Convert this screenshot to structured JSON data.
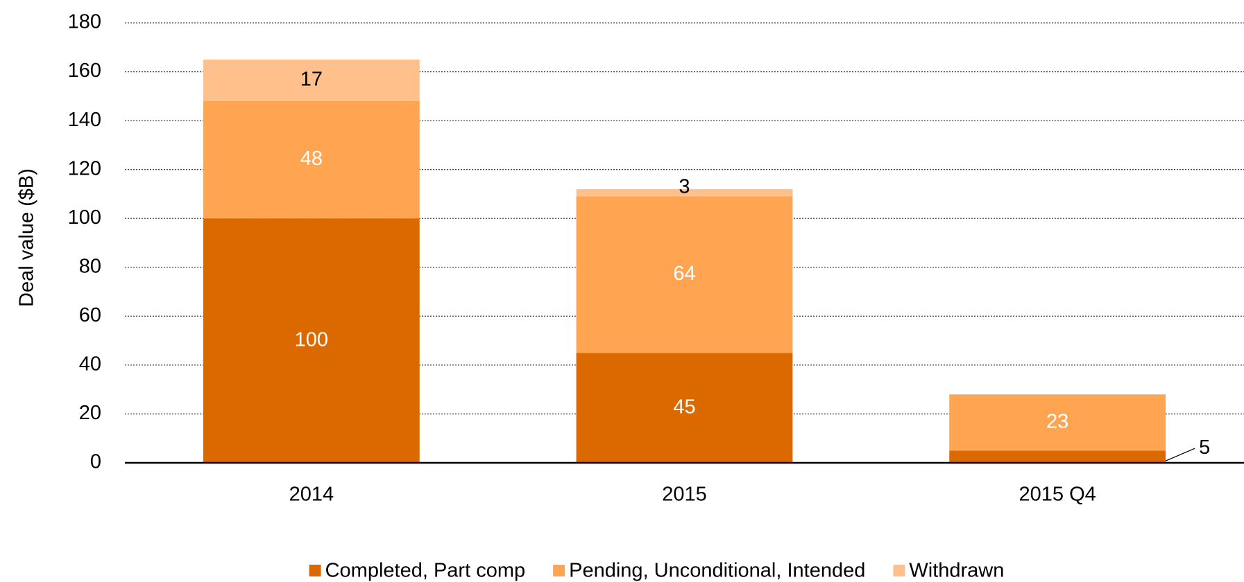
{
  "chart_data": {
    "type": "bar",
    "stacked": true,
    "y_label": "Deal value ($B)",
    "categories": [
      "2014",
      "2015",
      "2015 Q4"
    ],
    "series": [
      {
        "name": "Completed, Part comp",
        "color": "#dc6900",
        "label_color": "#ffffff",
        "values": [
          100,
          45,
          5
        ]
      },
      {
        "name": "Pending, Unconditional, Intended",
        "color": "#ffa552",
        "label_color": "#ffffff",
        "values": [
          48,
          64,
          23
        ]
      },
      {
        "name": "Withdrawn",
        "color": "#ffc08c",
        "label_color": "#000000",
        "values": [
          17,
          3,
          null
        ]
      }
    ],
    "ylim": [
      0,
      180
    ],
    "yticks": [
      0,
      20,
      40,
      60,
      80,
      100,
      120,
      140,
      160,
      180
    ],
    "grid": true,
    "legend": "bottom"
  }
}
